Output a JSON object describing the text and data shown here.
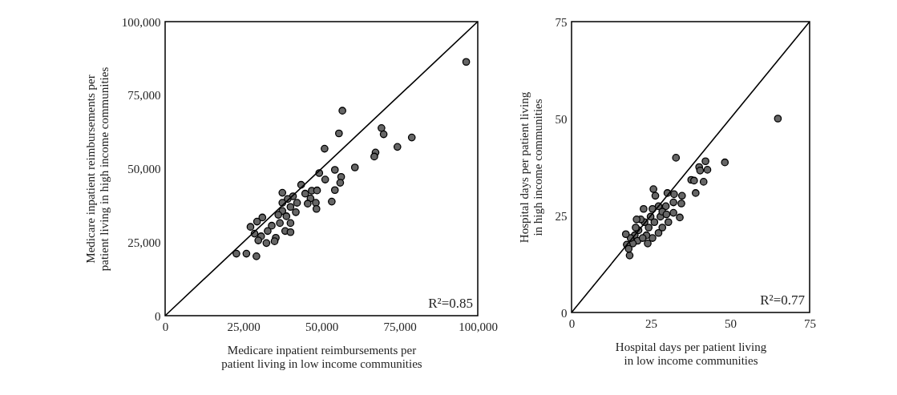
{
  "chart_data": [
    {
      "type": "scatter",
      "xlabel": "Medicare inpatient reimbursements per patient living in low income communities",
      "ylabel": "Medicare inpatient reimbursements per patient living in high income communities",
      "xlim": [
        0,
        100000
      ],
      "ylim": [
        0,
        100000
      ],
      "xticks": [
        0,
        {
          "value": 25000,
          "label": "25,000"
        },
        {
          "value": 50000,
          "label": "50,000"
        },
        {
          "value": 75000,
          "label": "75,000"
        },
        {
          "value": 100000,
          "label": "100,000"
        }
      ],
      "yticks": [
        0,
        {
          "value": 25000,
          "label": "25,000"
        },
        {
          "value": 50000,
          "label": "50,000"
        },
        {
          "value": 75000,
          "label": "75,000"
        },
        {
          "value": 100000,
          "label": "100,000"
        }
      ],
      "grid": false,
      "annotations": [
        "R²=0.85"
      ],
      "series": [
        {
          "color": "#666666",
          "marker": "circle",
          "x": [
            96300,
            56700,
            55600,
            69200,
            69900,
            78900,
            51000,
            74300,
            67300,
            66900,
            60700,
            54300,
            49300,
            51200,
            56300,
            56000,
            54300,
            53300,
            43500,
            44800,
            46900,
            48600,
            46500,
            48200,
            45600,
            48400,
            40900,
            39200,
            37500,
            42200,
            40100,
            37500,
            41800,
            38800,
            40100,
            36700,
            38400,
            40100,
            35400,
            34100,
            32800,
            31100,
            29400,
            27300,
            28600,
            30700,
            32400,
            29800,
            35000,
            36200,
            37500,
            22800,
            26000,
            29200
          ],
          "values": [
            86300,
            69700,
            62000,
            63800,
            61700,
            60600,
            56800,
            57400,
            55500,
            54100,
            50400,
            49600,
            48500,
            46300,
            47200,
            45200,
            42700,
            38800,
            44500,
            41500,
            42500,
            42600,
            39900,
            38400,
            38100,
            36300,
            40600,
            39700,
            38400,
            38400,
            37000,
            35600,
            35200,
            33800,
            31500,
            31500,
            28800,
            28400,
            26500,
            30600,
            28800,
            33400,
            32000,
            30200,
            27900,
            27000,
            24700,
            25600,
            25300,
            34300,
            41800,
            21100,
            21100,
            20200
          ]
        },
        {
          "type": "line",
          "color": "#000000",
          "x": [
            0,
            100000
          ],
          "values": [
            0,
            100000
          ]
        }
      ]
    },
    {
      "type": "scatter",
      "xlabel": "Hospital days per patient living in low income communities",
      "ylabel": "Hospital days per patient living in high income communities",
      "xlim": [
        0,
        75
      ],
      "ylim": [
        0,
        75
      ],
      "xticks": [
        0,
        25,
        50,
        75
      ],
      "yticks": [
        0,
        25,
        50,
        75
      ],
      "grid": false,
      "annotations": [
        "R²=0.77"
      ],
      "series": [
        {
          "color": "#666666",
          "marker": "circle",
          "x": [
            65,
            32.9,
            48.3,
            42.2,
            42.8,
            40.2,
            40.5,
            37.7,
            38.6,
            41.6,
            39.1,
            34.8,
            34.6,
            34.1,
            32.3,
            32.1,
            32.1,
            30.2,
            29.7,
            30.5,
            28.6,
            28,
            27.4,
            25.8,
            26.4,
            25.5,
            24.9,
            26.1,
            27.4,
            25.5,
            24,
            23.6,
            22.7,
            23,
            21.8,
            21.1,
            20.5,
            20.2,
            19.9,
            20.8,
            19.3,
            18.6,
            17.1,
            17.4,
            18.3,
            18,
            28.6,
            24.3,
            22.4,
            29.9
          ],
          "values": [
            50,
            39.9,
            38.7,
            39,
            36.8,
            37.5,
            36.6,
            34.2,
            34,
            33.7,
            30.8,
            30.1,
            28.1,
            24.5,
            30.5,
            28.4,
            25.7,
            30.8,
            27.4,
            23.3,
            21.9,
            24.7,
            27.4,
            31.8,
            30.1,
            26.7,
            24.7,
            23.3,
            20.5,
            19.2,
            17.8,
            19.9,
            26.7,
            23.3,
            24,
            21.2,
            24,
            21.9,
            19.9,
            18.5,
            17.8,
            19.2,
            20.2,
            17.5,
            14.7,
            16.4,
            26,
            21.9,
            19.2,
            25.3
          ]
        },
        {
          "type": "line",
          "color": "#000000",
          "x": [
            0,
            75
          ],
          "values": [
            0,
            75
          ]
        }
      ]
    }
  ]
}
